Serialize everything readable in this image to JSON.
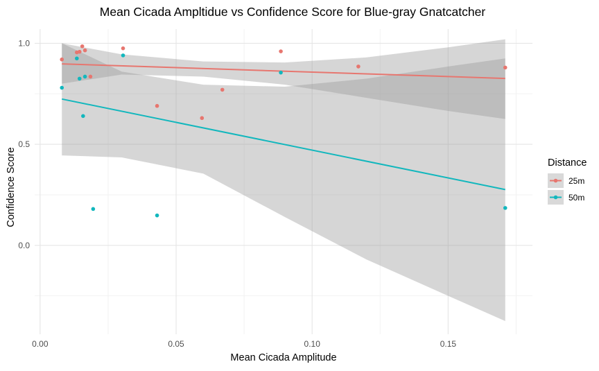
{
  "chart_data": {
    "type": "scatter",
    "title": "Mean Cicada Ampltidue vs Confidence Score for Blue-gray Gnatcatcher",
    "xlabel": "Mean Cicada Amplitude",
    "ylabel": "Confidence Score",
    "xlim": [
      -0.002,
      0.181
    ],
    "ylim": [
      -0.44,
      1.07
    ],
    "x_ticks": [
      0.0,
      0.05,
      0.1,
      0.15
    ],
    "x_tick_labels": [
      "0.00",
      "0.05",
      "0.10",
      "0.15"
    ],
    "y_ticks": [
      0.0,
      0.5,
      1.0
    ],
    "y_tick_labels": [
      "0.0",
      "0.5",
      "1.0"
    ],
    "grid": true,
    "legend": {
      "title": "Distance",
      "position": "right"
    },
    "series": [
      {
        "name": "25m",
        "color": "#E7766F",
        "points": [
          {
            "x": 0.008,
            "y": 0.92
          },
          {
            "x": 0.0155,
            "y": 0.985
          },
          {
            "x": 0.0165,
            "y": 0.965
          },
          {
            "x": 0.0135,
            "y": 0.955
          },
          {
            "x": 0.0145,
            "y": 0.958
          },
          {
            "x": 0.0185,
            "y": 0.835
          },
          {
            "x": 0.0305,
            "y": 0.975
          },
          {
            "x": 0.043,
            "y": 0.69
          },
          {
            "x": 0.0595,
            "y": 0.63
          },
          {
            "x": 0.067,
            "y": 0.77
          },
          {
            "x": 0.0885,
            "y": 0.96
          },
          {
            "x": 0.117,
            "y": 0.885
          },
          {
            "x": 0.171,
            "y": 0.88
          }
        ],
        "fit": {
          "x": [
            0.008,
            0.171
          ],
          "y": [
            0.898,
            0.826
          ]
        },
        "band": {
          "x": [
            0.008,
            0.03,
            0.06,
            0.09,
            0.12,
            0.15,
            0.171
          ],
          "upper": [
            1.0,
            0.945,
            0.91,
            0.905,
            0.93,
            0.98,
            1.02
          ],
          "lower": [
            0.8,
            0.845,
            0.835,
            0.795,
            0.73,
            0.665,
            0.625
          ]
        }
      },
      {
        "name": "50m",
        "color": "#12B7BD",
        "points": [
          {
            "x": 0.008,
            "y": 0.78
          },
          {
            "x": 0.0135,
            "y": 0.925
          },
          {
            "x": 0.0145,
            "y": 0.825
          },
          {
            "x": 0.0165,
            "y": 0.835
          },
          {
            "x": 0.0158,
            "y": 0.64
          },
          {
            "x": 0.0195,
            "y": 0.18
          },
          {
            "x": 0.0305,
            "y": 0.94
          },
          {
            "x": 0.043,
            "y": 0.148
          },
          {
            "x": 0.0885,
            "y": 0.855
          },
          {
            "x": 0.171,
            "y": 0.185
          }
        ],
        "fit": {
          "x": [
            0.008,
            0.171
          ],
          "y": [
            0.724,
            0.276
          ]
        },
        "band": {
          "x": [
            0.008,
            0.03,
            0.06,
            0.09,
            0.12,
            0.15,
            0.171
          ],
          "upper": [
            1.0,
            0.86,
            0.795,
            0.785,
            0.825,
            0.885,
            0.925
          ],
          "lower": [
            0.445,
            0.435,
            0.355,
            0.14,
            -0.07,
            -0.25,
            -0.375
          ]
        }
      }
    ]
  }
}
